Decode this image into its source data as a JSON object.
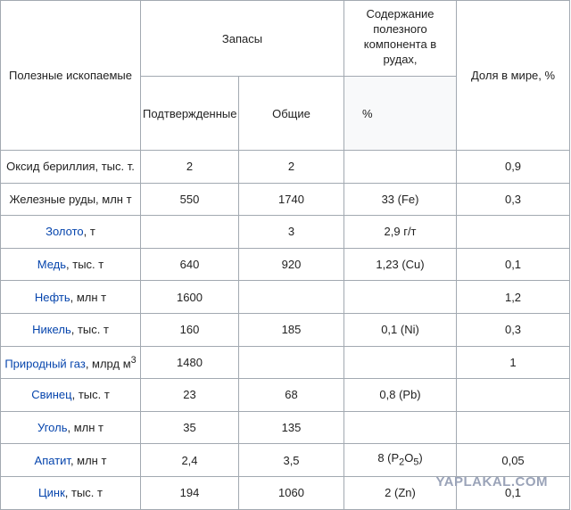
{
  "header": {
    "mineral": "Полезные ископаемые",
    "reserves": "Запасы",
    "confirmed": "Подтвержденные",
    "total": "Общие",
    "content": "Содержание полезного компонента в рудах,",
    "content_unit": "%",
    "share": "Доля в мире, %"
  },
  "rows": [
    [
      {
        "text": "Оксид бериллия, тыс. т."
      },
      "2",
      "2",
      "",
      "0,9"
    ],
    [
      {
        "text": "Железные руды, млн т"
      },
      "550",
      "1740",
      "33 (Fe)",
      "0,3"
    ],
    [
      {
        "link": "Золото",
        "rest": ", т"
      },
      "",
      "3",
      "2,9 г/т",
      ""
    ],
    [
      {
        "link": "Медь",
        "rest": ", тыс. т"
      },
      "640",
      "920",
      "1,23 (Cu)",
      "0,1"
    ],
    [
      {
        "link": "Нефть",
        "rest": ", млн т"
      },
      "1600",
      "",
      "",
      "1,2"
    ],
    [
      {
        "link": "Никель",
        "rest": ", тыс. т"
      },
      "160",
      "185",
      "0,1 (Ni)",
      "0,3"
    ],
    [
      {
        "link": "Природный газ",
        "rest": ", млрд м",
        "sup": "3"
      },
      "1480",
      "",
      "",
      "1"
    ],
    [
      {
        "link": "Свинец",
        "rest": ", тыс. т"
      },
      "23",
      "68",
      "0,8 (Pb)",
      ""
    ],
    [
      {
        "link": "Уголь",
        "rest": ", млн т"
      },
      "35",
      "135",
      "",
      ""
    ],
    [
      {
        "link": "Апатит",
        "rest": ", млн т"
      },
      "2,4",
      "3,5",
      [
        {
          "text": "8 (P"
        },
        {
          "sub": "2"
        },
        {
          "text": "O"
        },
        {
          "sub": "5"
        },
        {
          "text": ")"
        }
      ],
      "0,05"
    ],
    [
      {
        "link": "Цинк",
        "rest": ", тыс. т"
      },
      "194",
      "1060",
      "2 (Zn)",
      "0,1"
    ]
  ],
  "watermark": "YAPLAKAL.COM"
}
